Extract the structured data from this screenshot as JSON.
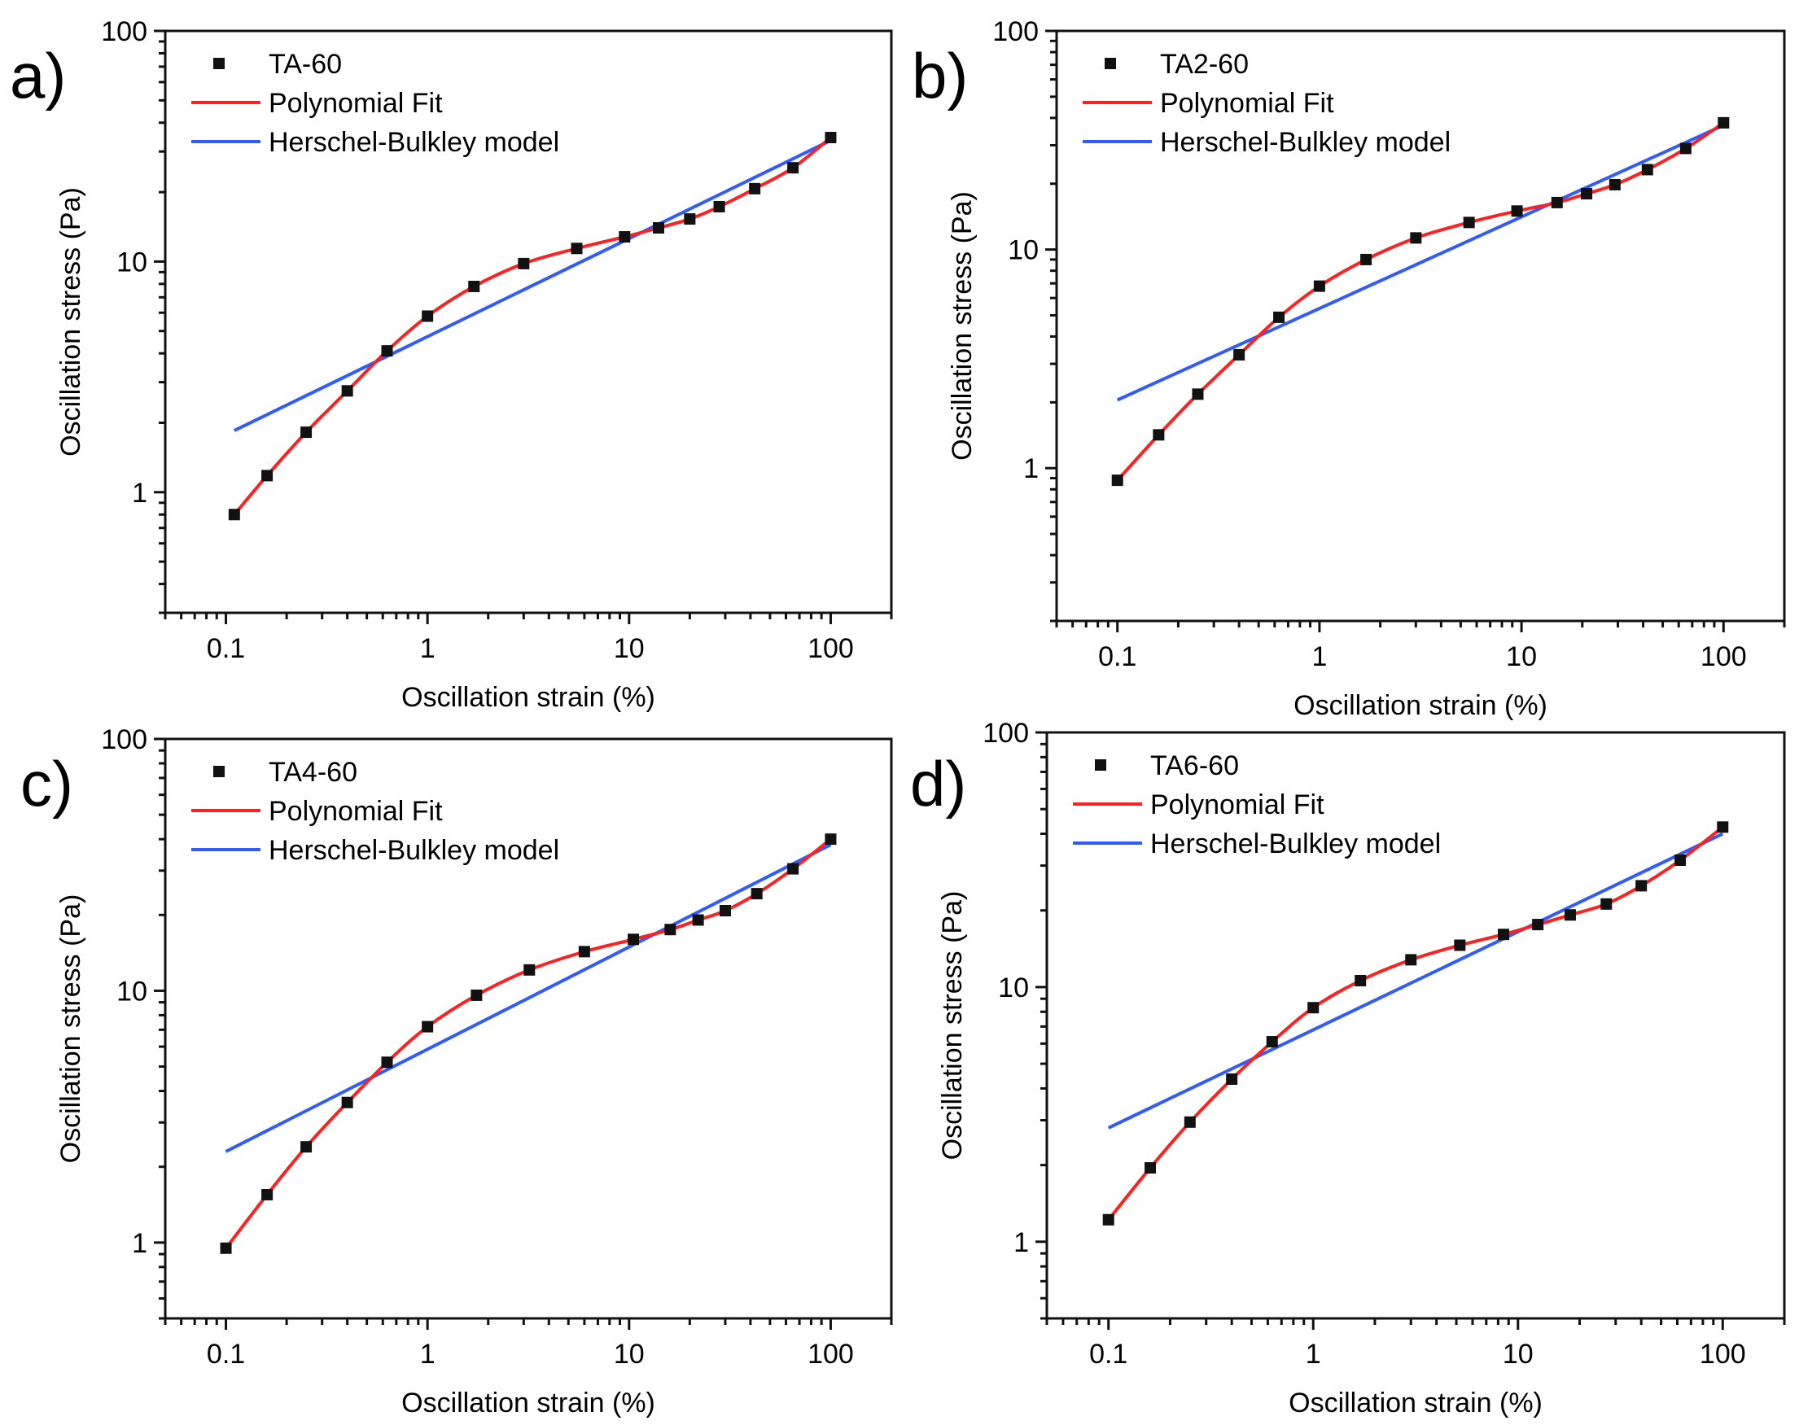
{
  "figure": {
    "panels_order": [
      "a",
      "b",
      "c",
      "d"
    ]
  },
  "colors": {
    "polynomial_fit": "#ff2020",
    "herschel_bulkley": "#2f5bff",
    "markers": "#111111",
    "axes": "#111111"
  },
  "chart_data": [
    {
      "panel_label": "a)",
      "type": "line",
      "xlabel": "Oscillation strain (%)",
      "ylabel": "Oscillation stress (Pa)",
      "xscale": "log",
      "yscale": "log",
      "xlim": [
        0.05,
        200
      ],
      "ylim": [
        0.3,
        100
      ],
      "x_ticks": [
        0.1,
        1,
        10,
        100
      ],
      "x_tick_labels": [
        "0.1",
        "1",
        "10",
        "100"
      ],
      "y_ticks": [
        1,
        10,
        100
      ],
      "y_tick_labels": [
        "1",
        "10",
        "100"
      ],
      "legend_position": "top-left",
      "series": [
        {
          "name": "TA-60",
          "kind": "scatter",
          "x": [
            0.11,
            0.16,
            0.25,
            0.4,
            0.63,
            1.0,
            1.7,
            3.0,
            5.5,
            9.5,
            14,
            20,
            28,
            42,
            65,
            100
          ],
          "y": [
            0.8,
            1.18,
            1.82,
            2.75,
            4.1,
            5.8,
            7.8,
            9.8,
            11.4,
            12.8,
            14.0,
            15.3,
            17.3,
            20.7,
            25.5,
            34.5
          ]
        },
        {
          "name": "Polynomial Fit",
          "kind": "line",
          "x": [
            0.11,
            0.16,
            0.25,
            0.4,
            0.63,
            1.0,
            1.7,
            3.0,
            5.5,
            9.5,
            14,
            20,
            28,
            42,
            65,
            100
          ],
          "y": [
            0.8,
            1.18,
            1.82,
            2.75,
            4.1,
            5.8,
            7.8,
            9.8,
            11.4,
            12.8,
            14.0,
            15.3,
            17.3,
            20.7,
            25.5,
            34.5
          ]
        },
        {
          "name": "Herschel-Bulkley model",
          "kind": "line",
          "x": [
            0.11,
            100
          ],
          "y": [
            1.85,
            33.5
          ]
        }
      ]
    },
    {
      "panel_label": "b)",
      "type": "line",
      "xlabel": "Oscillation strain (%)",
      "ylabel": "Oscillation stress (Pa)",
      "xscale": "log",
      "yscale": "log",
      "xlim": [
        0.05,
        200
      ],
      "ylim": [
        0.2,
        100
      ],
      "x_ticks": [
        0.1,
        1,
        10,
        100
      ],
      "x_tick_labels": [
        "0.1",
        "1",
        "10",
        "100"
      ],
      "y_ticks": [
        1,
        10,
        100
      ],
      "y_tick_labels": [
        "1",
        "10",
        "100"
      ],
      "legend_position": "top-left",
      "series": [
        {
          "name": "TA2-60",
          "kind": "scatter",
          "x": [
            0.1,
            0.16,
            0.25,
            0.4,
            0.63,
            1.0,
            1.7,
            3.0,
            5.5,
            9.5,
            15,
            21,
            29,
            42,
            65,
            100
          ],
          "y": [
            0.88,
            1.42,
            2.18,
            3.3,
            4.9,
            6.8,
            9.0,
            11.3,
            13.3,
            15.0,
            16.4,
            18.0,
            19.8,
            23.2,
            29.0,
            38.0
          ]
        },
        {
          "name": "Polynomial Fit",
          "kind": "line",
          "x": [
            0.1,
            0.16,
            0.25,
            0.4,
            0.63,
            1.0,
            1.7,
            3.0,
            5.5,
            9.5,
            15,
            21,
            29,
            42,
            65,
            100
          ],
          "y": [
            0.88,
            1.42,
            2.18,
            3.3,
            4.9,
            6.8,
            9.0,
            11.3,
            13.3,
            15.0,
            16.4,
            18.0,
            19.8,
            23.2,
            29.0,
            38.0
          ]
        },
        {
          "name": "Herschel-Bulkley model",
          "kind": "line",
          "x": [
            0.1,
            100
          ],
          "y": [
            2.05,
            37.0
          ]
        }
      ]
    },
    {
      "panel_label": "c)",
      "type": "line",
      "xlabel": "Oscillation strain (%)",
      "ylabel": "Oscillation stress (Pa)",
      "xscale": "log",
      "yscale": "log",
      "xlim": [
        0.05,
        200
      ],
      "ylim": [
        0.5,
        100
      ],
      "x_ticks": [
        0.1,
        1,
        10,
        100
      ],
      "x_tick_labels": [
        "0.1",
        "1",
        "10",
        "100"
      ],
      "y_ticks": [
        1,
        10,
        100
      ],
      "y_tick_labels": [
        "1",
        "10",
        "100"
      ],
      "legend_position": "top-left",
      "series": [
        {
          "name": "TA4-60",
          "kind": "scatter",
          "x": [
            0.1,
            0.16,
            0.25,
            0.4,
            0.63,
            1.0,
            1.75,
            3.2,
            6.0,
            10.5,
            16,
            22,
            30,
            43,
            65,
            100
          ],
          "y": [
            0.95,
            1.55,
            2.4,
            3.6,
            5.2,
            7.2,
            9.6,
            12.1,
            14.3,
            16.0,
            17.5,
            19.1,
            20.8,
            24.3,
            30.5,
            40.0
          ]
        },
        {
          "name": "Polynomial Fit",
          "kind": "line",
          "x": [
            0.1,
            0.16,
            0.25,
            0.4,
            0.63,
            1.0,
            1.75,
            3.2,
            6.0,
            10.5,
            16,
            22,
            30,
            43,
            65,
            100
          ],
          "y": [
            0.95,
            1.55,
            2.4,
            3.6,
            5.2,
            7.2,
            9.6,
            12.1,
            14.3,
            16.0,
            17.5,
            19.1,
            20.8,
            24.3,
            30.5,
            40.0
          ]
        },
        {
          "name": "Herschel-Bulkley model",
          "kind": "line",
          "x": [
            0.1,
            100
          ],
          "y": [
            2.3,
            38.0
          ]
        }
      ]
    },
    {
      "panel_label": "d)",
      "type": "line",
      "xlabel": "Oscillation strain (%)",
      "ylabel": "Oscillation stress (Pa)",
      "xscale": "log",
      "yscale": "log",
      "xlim": [
        0.05,
        200
      ],
      "ylim": [
        0.5,
        100
      ],
      "x_ticks": [
        0.1,
        1,
        10,
        100
      ],
      "x_tick_labels": [
        "0.1",
        "1",
        "10",
        "100"
      ],
      "y_ticks": [
        1,
        10,
        100
      ],
      "y_tick_labels": [
        "1",
        "10",
        "100"
      ],
      "legend_position": "top-left",
      "series": [
        {
          "name": "TA6-60",
          "kind": "scatter",
          "x": [
            0.1,
            0.16,
            0.25,
            0.4,
            0.63,
            1.0,
            1.7,
            3.0,
            5.2,
            8.5,
            12.5,
            18,
            27,
            40,
            62,
            100
          ],
          "y": [
            1.22,
            1.95,
            2.95,
            4.35,
            6.1,
            8.3,
            10.6,
            12.8,
            14.6,
            16.1,
            17.6,
            19.2,
            21.2,
            25.0,
            31.5,
            42.5
          ]
        },
        {
          "name": "Polynomial Fit",
          "kind": "line",
          "x": [
            0.1,
            0.16,
            0.25,
            0.4,
            0.63,
            1.0,
            1.7,
            3.0,
            5.2,
            8.5,
            12.5,
            18,
            27,
            40,
            62,
            100
          ],
          "y": [
            1.22,
            1.95,
            2.95,
            4.35,
            6.1,
            8.3,
            10.6,
            12.8,
            14.6,
            16.1,
            17.6,
            19.2,
            21.2,
            25.0,
            31.5,
            42.5
          ]
        },
        {
          "name": "Herschel-Bulkley model",
          "kind": "line",
          "x": [
            0.1,
            100
          ],
          "y": [
            2.8,
            40.0
          ]
        }
      ]
    }
  ]
}
